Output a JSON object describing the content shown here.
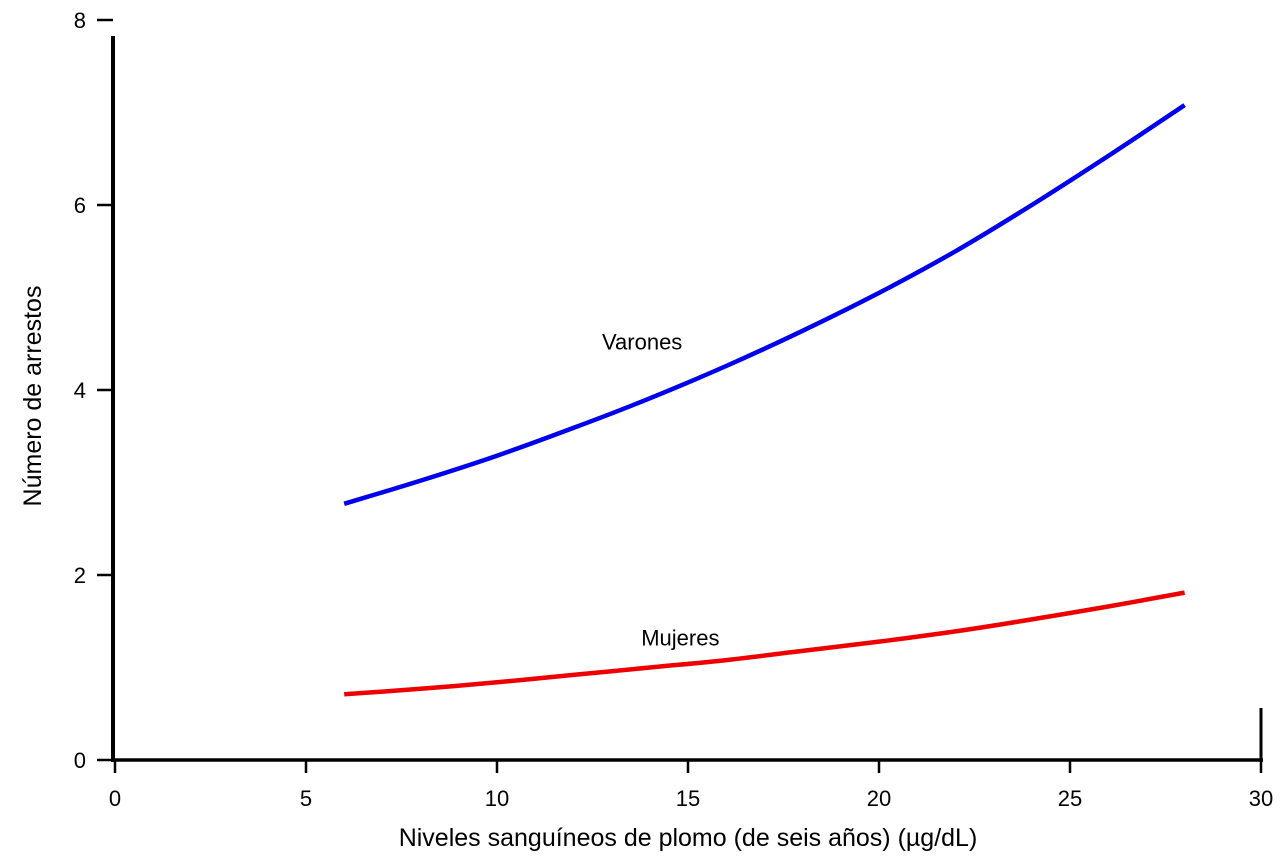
{
  "chart_data": {
    "type": "line",
    "title": "",
    "xlabel": "Niveles sanguíneos de plomo (de seis años) (µg/dL)",
    "ylabel": "Número de arrestos",
    "xlim": [
      0,
      30
    ],
    "ylim": [
      0,
      8
    ],
    "xticks": [
      "0",
      "5",
      "10",
      "15",
      "20",
      "25",
      "30"
    ],
    "yticks": [
      "0",
      "2",
      "4",
      "6",
      "8"
    ],
    "grid": false,
    "legend": "none",
    "series": [
      {
        "name": "Varones",
        "color": "#0000ee",
        "x": [
          6,
          8,
          10,
          12,
          14,
          16,
          18,
          20,
          22,
          24,
          26,
          28
        ],
        "y": [
          2.77,
          3.02,
          3.29,
          3.59,
          3.91,
          4.26,
          4.64,
          5.05,
          5.5,
          6.0,
          6.53,
          7.08
        ]
      },
      {
        "name": "Mujeres",
        "color": "#ee0000",
        "x": [
          6,
          8,
          10,
          12,
          14,
          16,
          18,
          20,
          22,
          24,
          26,
          28
        ],
        "y": [
          0.71,
          0.77,
          0.84,
          0.92,
          1.0,
          1.08,
          1.18,
          1.28,
          1.39,
          1.52,
          1.66,
          1.81
        ]
      }
    ]
  }
}
